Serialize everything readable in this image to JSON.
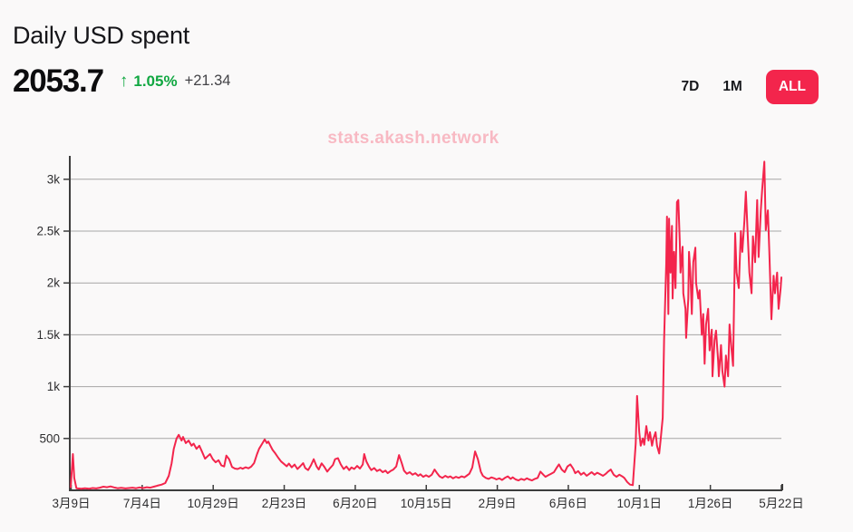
{
  "header": {
    "title": "Daily USD spent",
    "value": "2053.7",
    "change_arrow": "↑",
    "change_percent": "1.05%",
    "change_absolute": "+21.34",
    "ranges": [
      {
        "label": "7D",
        "active": false
      },
      {
        "label": "1M",
        "active": false
      },
      {
        "label": "ALL",
        "active": true
      }
    ]
  },
  "watermark": "stats.akash.network",
  "colors": {
    "accent_red": "#f3254c",
    "positive_green": "#10a741",
    "change_muted": "#434347",
    "grid": "#a6a6a6",
    "axis": "#3d3d3d",
    "tick_label": "#2e2e30",
    "background": "#faf9f9",
    "watermark_pink": "#f8b9c3",
    "active_button_text": "#ffffff"
  },
  "chart_data": {
    "type": "line",
    "title": "Daily USD spent",
    "series_name": "Daily USD spent",
    "line_color": "#f3254c",
    "grid": "horizontal-only",
    "legend": "none",
    "ylim": [
      0,
      3200
    ],
    "y_tick_values": [
      500,
      1000,
      1500,
      2000,
      2500,
      3000
    ],
    "y_tick_labels": [
      "500",
      "1k",
      "1.5k",
      "2k",
      "2.5k",
      "3k"
    ],
    "x_tick_labels": [
      "3月9日",
      "7月4日",
      "10月29日",
      "2月23日",
      "6月20日",
      "10月15日",
      "2月9日",
      "6月6日",
      "10月1日",
      "1月26日",
      "5月22日"
    ],
    "x_unit": "percent_of_date_range",
    "last_value": 2053.7,
    "max_value": 3170,
    "points": [
      [
        0,
        30
      ],
      [
        0.3,
        350
      ],
      [
        0.5,
        120
      ],
      [
        0.8,
        20
      ],
      [
        1,
        18
      ],
      [
        1.5,
        15
      ],
      [
        2,
        20
      ],
      [
        2.6,
        16
      ],
      [
        3.1,
        22
      ],
      [
        3.6,
        18
      ],
      [
        4.1,
        25
      ],
      [
        4.6,
        35
      ],
      [
        5.1,
        30
      ],
      [
        5.6,
        38
      ],
      [
        6.1,
        28
      ],
      [
        6.6,
        20
      ],
      [
        7.1,
        24
      ],
      [
        7.7,
        18
      ],
      [
        8.2,
        22
      ],
      [
        8.7,
        25
      ],
      [
        9.2,
        20
      ],
      [
        9.7,
        28
      ],
      [
        10.2,
        22
      ],
      [
        10.7,
        30
      ],
      [
        11.2,
        25
      ],
      [
        11.7,
        35
      ],
      [
        12.2,
        45
      ],
      [
        12.8,
        55
      ],
      [
        13.3,
        70
      ],
      [
        13.8,
        140
      ],
      [
        14.2,
        260
      ],
      [
        14.5,
        400
      ],
      [
        14.9,
        500
      ],
      [
        15.2,
        535
      ],
      [
        15.6,
        480
      ],
      [
        15.8,
        515
      ],
      [
        16.2,
        455
      ],
      [
        16.6,
        480
      ],
      [
        17,
        430
      ],
      [
        17.3,
        450
      ],
      [
        17.7,
        400
      ],
      [
        18.1,
        430
      ],
      [
        18.5,
        370
      ],
      [
        18.9,
        305
      ],
      [
        19.3,
        330
      ],
      [
        19.6,
        350
      ],
      [
        20,
        300
      ],
      [
        20.4,
        270
      ],
      [
        20.8,
        290
      ],
      [
        21.2,
        240
      ],
      [
        21.6,
        230
      ],
      [
        21.9,
        335
      ],
      [
        22.3,
        300
      ],
      [
        22.7,
        225
      ],
      [
        23.1,
        210
      ],
      [
        23.5,
        205
      ],
      [
        23.9,
        218
      ],
      [
        24.2,
        208
      ],
      [
        24.6,
        222
      ],
      [
        25,
        212
      ],
      [
        25.4,
        228
      ],
      [
        25.8,
        262
      ],
      [
        26.2,
        345
      ],
      [
        26.5,
        400
      ],
      [
        26.9,
        445
      ],
      [
        27.3,
        490
      ],
      [
        27.6,
        455
      ],
      [
        27.8,
        470
      ],
      [
        28.1,
        430
      ],
      [
        28.4,
        390
      ],
      [
        28.8,
        355
      ],
      [
        29.2,
        315
      ],
      [
        29.6,
        278
      ],
      [
        30,
        255
      ],
      [
        30.4,
        232
      ],
      [
        30.7,
        258
      ],
      [
        31.1,
        222
      ],
      [
        31.5,
        248
      ],
      [
        31.9,
        205
      ],
      [
        32.3,
        232
      ],
      [
        32.7,
        262
      ],
      [
        33,
        215
      ],
      [
        33.4,
        195
      ],
      [
        33.8,
        240
      ],
      [
        34.2,
        300
      ],
      [
        34.6,
        230
      ],
      [
        34.9,
        200
      ],
      [
        35.3,
        260
      ],
      [
        35.7,
        225
      ],
      [
        36.1,
        180
      ],
      [
        36.5,
        215
      ],
      [
        36.9,
        245
      ],
      [
        37.2,
        300
      ],
      [
        37.6,
        310
      ],
      [
        38,
        250
      ],
      [
        38.4,
        205
      ],
      [
        38.8,
        230
      ],
      [
        39.2,
        195
      ],
      [
        39.5,
        220
      ],
      [
        39.9,
        205
      ],
      [
        40.3,
        235
      ],
      [
        40.7,
        210
      ],
      [
        41.1,
        250
      ],
      [
        41.3,
        350
      ],
      [
        41.6,
        280
      ],
      [
        42,
        225
      ],
      [
        42.3,
        195
      ],
      [
        42.7,
        215
      ],
      [
        43.1,
        185
      ],
      [
        43.5,
        200
      ],
      [
        43.9,
        175
      ],
      [
        44.3,
        190
      ],
      [
        44.6,
        165
      ],
      [
        45,
        185
      ],
      [
        45.4,
        200
      ],
      [
        45.8,
        230
      ],
      [
        46.2,
        340
      ],
      [
        46.6,
        260
      ],
      [
        46.9,
        190
      ],
      [
        47.3,
        160
      ],
      [
        47.7,
        175
      ],
      [
        48.1,
        150
      ],
      [
        48.5,
        165
      ],
      [
        48.9,
        140
      ],
      [
        49.2,
        155
      ],
      [
        49.6,
        130
      ],
      [
        50,
        145
      ],
      [
        50.4,
        130
      ],
      [
        50.8,
        150
      ],
      [
        51.2,
        200
      ],
      [
        51.5,
        170
      ],
      [
        51.9,
        135
      ],
      [
        52.3,
        120
      ],
      [
        52.7,
        140
      ],
      [
        53.1,
        125
      ],
      [
        53.4,
        135
      ],
      [
        53.8,
        115
      ],
      [
        54.2,
        130
      ],
      [
        54.6,
        120
      ],
      [
        55,
        135
      ],
      [
        55.4,
        125
      ],
      [
        55.7,
        140
      ],
      [
        56.1,
        160
      ],
      [
        56.5,
        220
      ],
      [
        56.9,
        375
      ],
      [
        57.3,
        300
      ],
      [
        57.7,
        180
      ],
      [
        58,
        140
      ],
      [
        58.4,
        120
      ],
      [
        58.8,
        110
      ],
      [
        59.2,
        125
      ],
      [
        59.6,
        115
      ],
      [
        59.9,
        105
      ],
      [
        60.3,
        115
      ],
      [
        60.7,
        100
      ],
      [
        61.1,
        120
      ],
      [
        61.5,
        135
      ],
      [
        61.9,
        110
      ],
      [
        62.2,
        125
      ],
      [
        62.6,
        105
      ],
      [
        63,
        95
      ],
      [
        63.4,
        110
      ],
      [
        63.8,
        100
      ],
      [
        64.2,
        115
      ],
      [
        64.5,
        105
      ],
      [
        64.9,
        95
      ],
      [
        65.3,
        110
      ],
      [
        65.7,
        120
      ],
      [
        66.1,
        180
      ],
      [
        66.5,
        150
      ],
      [
        66.8,
        130
      ],
      [
        67.2,
        145
      ],
      [
        67.6,
        160
      ],
      [
        68,
        175
      ],
      [
        68.4,
        220
      ],
      [
        68.7,
        250
      ],
      [
        69.1,
        200
      ],
      [
        69.5,
        175
      ],
      [
        69.9,
        230
      ],
      [
        70.3,
        250
      ],
      [
        70.7,
        210
      ],
      [
        71,
        165
      ],
      [
        71.4,
        185
      ],
      [
        71.8,
        150
      ],
      [
        72.2,
        170
      ],
      [
        72.6,
        140
      ],
      [
        73,
        160
      ],
      [
        73.3,
        175
      ],
      [
        73.7,
        150
      ],
      [
        74.1,
        170
      ],
      [
        74.5,
        155
      ],
      [
        74.9,
        140
      ],
      [
        75.3,
        160
      ],
      [
        75.6,
        180
      ],
      [
        76,
        200
      ],
      [
        76.4,
        150
      ],
      [
        76.8,
        130
      ],
      [
        77.2,
        150
      ],
      [
        77.6,
        135
      ],
      [
        77.9,
        120
      ],
      [
        78.3,
        80
      ],
      [
        78.7,
        55
      ],
      [
        79.1,
        50
      ],
      [
        79.5,
        450
      ],
      [
        79.7,
        910
      ],
      [
        80,
        560
      ],
      [
        80.2,
        430
      ],
      [
        80.5,
        500
      ],
      [
        80.7,
        440
      ],
      [
        81,
        620
      ],
      [
        81.3,
        480
      ],
      [
        81.5,
        560
      ],
      [
        81.8,
        430
      ],
      [
        82,
        500
      ],
      [
        82.3,
        560
      ],
      [
        82.5,
        430
      ],
      [
        82.8,
        355
      ],
      [
        83,
        480
      ],
      [
        83.3,
        700
      ],
      [
        83.5,
        1450
      ],
      [
        83.8,
        2200
      ],
      [
        83.9,
        2640
      ],
      [
        84.1,
        1700
      ],
      [
        84.2,
        2620
      ],
      [
        84.4,
        2100
      ],
      [
        84.6,
        2550
      ],
      [
        84.7,
        1850
      ],
      [
        84.9,
        2300
      ],
      [
        85.1,
        1950
      ],
      [
        85.3,
        2780
      ],
      [
        85.5,
        2800
      ],
      [
        85.7,
        2400
      ],
      [
        85.8,
        2100
      ],
      [
        86.1,
        2350
      ],
      [
        86.2,
        1900
      ],
      [
        86.5,
        1750
      ],
      [
        86.6,
        1470
      ],
      [
        86.9,
        1850
      ],
      [
        87,
        2300
      ],
      [
        87.2,
        2100
      ],
      [
        87.4,
        1700
      ],
      [
        87.6,
        2200
      ],
      [
        87.9,
        2340
      ],
      [
        88,
        2000
      ],
      [
        88.3,
        1850
      ],
      [
        88.5,
        1930
      ],
      [
        88.8,
        1500
      ],
      [
        89,
        1700
      ],
      [
        89.2,
        1220
      ],
      [
        89.4,
        1600
      ],
      [
        89.7,
        1750
      ],
      [
        89.9,
        1350
      ],
      [
        90.2,
        1550
      ],
      [
        90.3,
        1100
      ],
      [
        90.6,
        1450
      ],
      [
        90.8,
        1540
      ],
      [
        91.1,
        1250
      ],
      [
        91.2,
        1100
      ],
      [
        91.5,
        1400
      ],
      [
        91.7,
        1150
      ],
      [
        92,
        1000
      ],
      [
        92.2,
        1300
      ],
      [
        92.5,
        1100
      ],
      [
        92.7,
        1600
      ],
      [
        93,
        1350
      ],
      [
        93.2,
        1200
      ],
      [
        93.5,
        2480
      ],
      [
        93.7,
        2100
      ],
      [
        94,
        1950
      ],
      [
        94.3,
        2500
      ],
      [
        94.5,
        2300
      ],
      [
        94.8,
        2600
      ],
      [
        95,
        2880
      ],
      [
        95.3,
        2400
      ],
      [
        95.5,
        2100
      ],
      [
        95.8,
        1900
      ],
      [
        96,
        2450
      ],
      [
        96.3,
        2200
      ],
      [
        96.6,
        2800
      ],
      [
        96.8,
        2250
      ],
      [
        97.1,
        2700
      ],
      [
        97.3,
        2900
      ],
      [
        97.6,
        3170
      ],
      [
        97.8,
        2510
      ],
      [
        98.1,
        2700
      ],
      [
        98.3,
        2300
      ],
      [
        98.6,
        1650
      ],
      [
        98.9,
        2070
      ],
      [
        99.1,
        1900
      ],
      [
        99.4,
        2100
      ],
      [
        99.6,
        1750
      ],
      [
        99.9,
        1950
      ],
      [
        100,
        2053.7
      ]
    ]
  }
}
